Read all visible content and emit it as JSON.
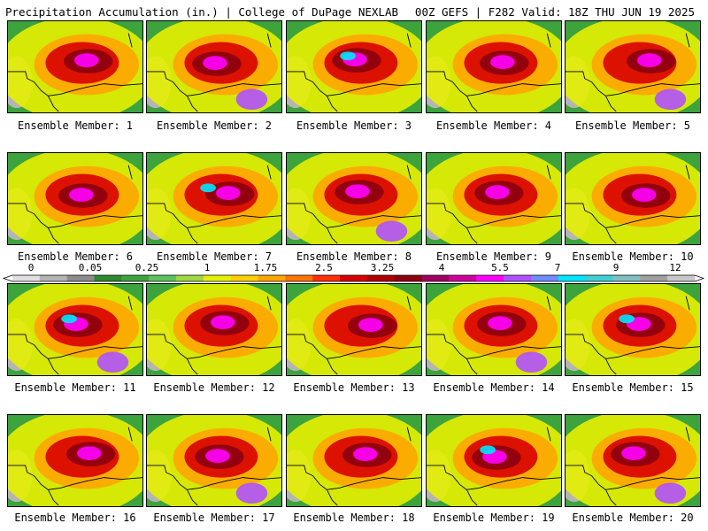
{
  "header": {
    "title": "Precipitation Accumulation (in.) | College of DuPage NEXLAB",
    "run_info": "00Z GEFS | F282 Valid: 18Z THU JUN 19 2025"
  },
  "colorbar": {
    "tick_labels": [
      "0",
      "0.05",
      "0.25",
      "1",
      "1.75",
      "2.5",
      "3.25",
      "4",
      "5.5",
      "7",
      "9",
      "12"
    ],
    "colors": [
      "#e0e0e0",
      "#b4b4b4",
      "#8c8c8c",
      "#2d8a2d",
      "#3da33d",
      "#5cc45c",
      "#9fd83f",
      "#e5f000",
      "#ffd000",
      "#ffa500",
      "#ff7400",
      "#ff3000",
      "#d80000",
      "#b00000",
      "#8c0010",
      "#a00060",
      "#d000a0",
      "#ff00ff",
      "#b050ff",
      "#6f8cff",
      "#00e5ff",
      "#40d0d0",
      "#80c0c0",
      "#a0a0a0",
      "#c8c8c8"
    ]
  },
  "members": [
    {
      "label": "Ensemble Member: 1"
    },
    {
      "label": "Ensemble Member: 2"
    },
    {
      "label": "Ensemble Member: 3"
    },
    {
      "label": "Ensemble Member: 4"
    },
    {
      "label": "Ensemble Member: 5"
    },
    {
      "label": "Ensemble Member: 6"
    },
    {
      "label": "Ensemble Member: 7"
    },
    {
      "label": "Ensemble Member: 8"
    },
    {
      "label": "Ensemble Member: 9"
    },
    {
      "label": "Ensemble Member: 10"
    },
    {
      "label": "Ensemble Member: 11"
    },
    {
      "label": "Ensemble Member: 12"
    },
    {
      "label": "Ensemble Member: 13"
    },
    {
      "label": "Ensemble Member: 14"
    },
    {
      "label": "Ensemble Member: 15"
    },
    {
      "label": "Ensemble Member: 16"
    },
    {
      "label": "Ensemble Member: 17"
    },
    {
      "label": "Ensemble Member: 18"
    },
    {
      "label": "Ensemble Member: 19"
    },
    {
      "label": "Ensemble Member: 20"
    }
  ]
}
